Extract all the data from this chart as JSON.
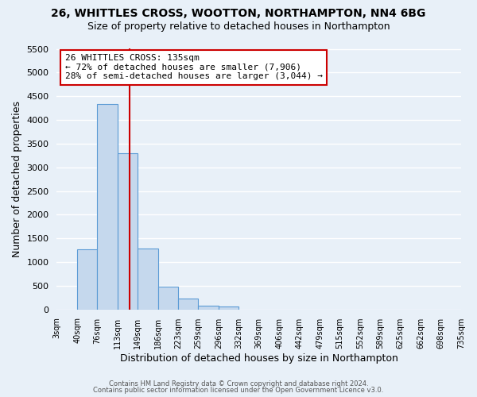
{
  "title1": "26, WHITTLES CROSS, WOOTTON, NORTHAMPTON, NN4 6BG",
  "title2": "Size of property relative to detached houses in Northampton",
  "xlabel": "Distribution of detached houses by size in Northampton",
  "ylabel": "Number of detached properties",
  "bin_edges": [
    3,
    40,
    76,
    113,
    149,
    186,
    223,
    259,
    296,
    332,
    369,
    406,
    442,
    479,
    515,
    552,
    589,
    625,
    662,
    698,
    735
  ],
  "bar_heights": [
    0,
    1270,
    4330,
    3300,
    1290,
    480,
    230,
    80,
    55,
    0,
    0,
    0,
    0,
    0,
    0,
    0,
    0,
    0,
    0,
    0
  ],
  "bar_color": "#c5d8ed",
  "bar_edge_color": "#5b9bd5",
  "vline_x": 135,
  "vline_color": "#cc0000",
  "ylim": [
    0,
    5500
  ],
  "yticks": [
    0,
    500,
    1000,
    1500,
    2000,
    2500,
    3000,
    3500,
    4000,
    4500,
    5000,
    5500
  ],
  "xtick_labels": [
    "3sqm",
    "40sqm",
    "76sqm",
    "113sqm",
    "149sqm",
    "186sqm",
    "223sqm",
    "259sqm",
    "296sqm",
    "332sqm",
    "369sqm",
    "406sqm",
    "442sqm",
    "479sqm",
    "515sqm",
    "552sqm",
    "589sqm",
    "625sqm",
    "662sqm",
    "698sqm",
    "735sqm"
  ],
  "annotation_title": "26 WHITTLES CROSS: 135sqm",
  "annotation_line1": "← 72% of detached houses are smaller (7,906)",
  "annotation_line2": "28% of semi-detached houses are larger (3,044) →",
  "annotation_box_color": "#ffffff",
  "annotation_box_edge": "#cc0000",
  "footer1": "Contains HM Land Registry data © Crown copyright and database right 2024.",
  "footer2": "Contains public sector information licensed under the Open Government Licence v3.0.",
  "bg_color": "#e8f0f8",
  "plot_bg_color": "#e8f0f8",
  "grid_color": "#ffffff",
  "title1_fontsize": 10,
  "title2_fontsize": 9
}
